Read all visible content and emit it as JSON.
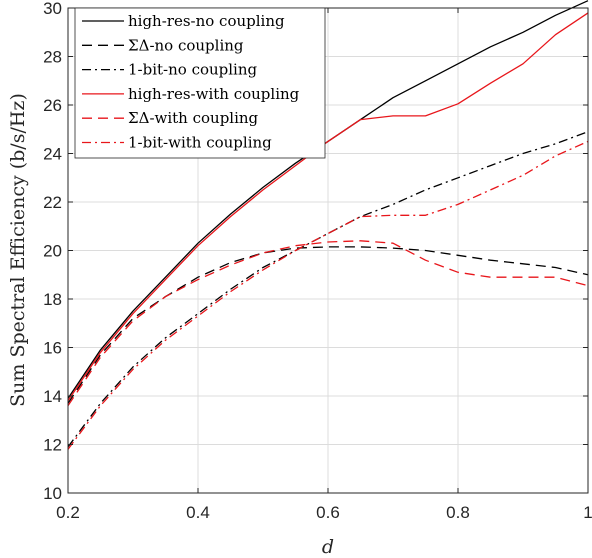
{
  "chart_data": {
    "type": "line",
    "xlabel": "d",
    "ylabel": "Sum Spectral Efficiency  (b/s/Hz)",
    "xlim": [
      0.2,
      1
    ],
    "ylim": [
      10,
      30
    ],
    "xticks": [
      0.2,
      0.4,
      0.6,
      0.8,
      1
    ],
    "yticks": [
      10,
      12,
      14,
      16,
      18,
      20,
      22,
      24,
      26,
      28,
      30
    ],
    "xtick_labels": [
      "0.2",
      "0.4",
      "0.6",
      "0.8",
      "1"
    ],
    "ytick_labels": [
      "10",
      "12",
      "14",
      "16",
      "18",
      "20",
      "22",
      "24",
      "26",
      "28",
      "30"
    ],
    "grid": true,
    "legend_position": "top-left",
    "x": [
      0.2,
      0.25,
      0.3,
      0.35,
      0.4,
      0.45,
      0.5,
      0.55,
      0.6,
      0.65,
      0.7,
      0.75,
      0.8,
      0.85,
      0.9,
      0.95,
      1.0
    ],
    "series": [
      {
        "name": "high-res-no coupling",
        "color": "#000000",
        "dash": "solid",
        "values": [
          13.9,
          15.9,
          17.5,
          18.9,
          20.3,
          21.5,
          22.6,
          23.6,
          24.5,
          25.4,
          26.3,
          27.0,
          27.7,
          28.4,
          29.0,
          29.7,
          30.3
        ]
      },
      {
        "name": "ΣΔ-no coupling",
        "color": "#000000",
        "dash": "dashed",
        "values": [
          13.7,
          15.7,
          17.2,
          18.1,
          18.9,
          19.5,
          19.9,
          20.1,
          20.15,
          20.15,
          20.1,
          20.0,
          19.8,
          19.6,
          19.45,
          19.3,
          19.0
        ]
      },
      {
        "name": "1-bit-no coupling",
        "color": "#000000",
        "dash": "dashdot",
        "values": [
          11.9,
          13.7,
          15.2,
          16.4,
          17.4,
          18.4,
          19.3,
          20.0,
          20.7,
          21.4,
          21.9,
          22.5,
          23.0,
          23.5,
          24.0,
          24.4,
          24.9
        ]
      },
      {
        "name": "high-res-with coupling",
        "color": "#e8161b",
        "dash": "solid",
        "values": [
          13.8,
          15.8,
          17.4,
          18.8,
          20.2,
          21.4,
          22.5,
          23.5,
          24.5,
          25.4,
          25.55,
          25.55,
          26.05,
          26.9,
          27.7,
          28.9,
          29.8
        ]
      },
      {
        "name": "ΣΔ-with coupling",
        "color": "#e8161b",
        "dash": "dashed",
        "values": [
          13.6,
          15.6,
          17.1,
          18.1,
          18.8,
          19.4,
          19.9,
          20.2,
          20.35,
          20.4,
          20.3,
          19.6,
          19.1,
          18.9,
          18.9,
          18.9,
          18.55
        ]
      },
      {
        "name": "1-bit-with coupling",
        "color": "#e8161b",
        "dash": "dashdot",
        "values": [
          11.8,
          13.6,
          15.1,
          16.3,
          17.3,
          18.3,
          19.2,
          20.0,
          20.7,
          21.4,
          21.45,
          21.45,
          21.9,
          22.5,
          23.1,
          23.9,
          24.5
        ]
      }
    ]
  }
}
